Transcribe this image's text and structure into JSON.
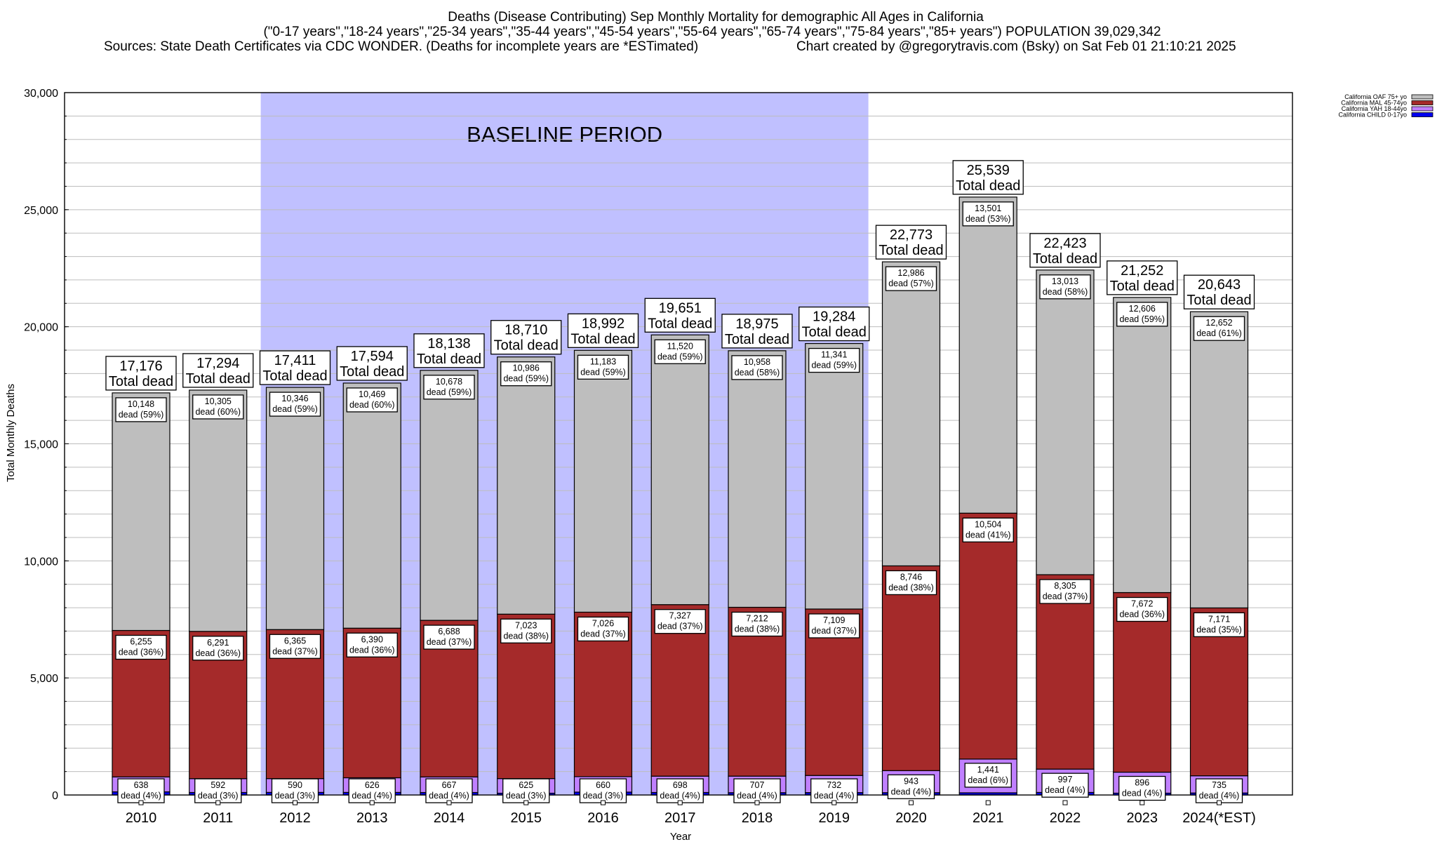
{
  "chart_data": {
    "type": "bar",
    "stacked": true,
    "title": "Deaths (Disease Contributing) Sep Monthly Mortality for demographic All Ages in California",
    "subtitle": "(\"0-17 years\",\"18-24 years\",\"25-34 years\",\"35-44 years\",\"45-54 years\",\"55-64 years\",\"65-74 years\",\"75-84 years\",\"85+ years\") POPULATION 39,029,342",
    "sources": "Sources: State Death Certificates via CDC WONDER. (Deaths for incomplete years are *ESTimated)",
    "credit": "Chart created by @gregorytravis.com (Bsky) on Sat Feb 01 21:10:21 2025",
    "xlabel": "Year",
    "ylabel": "Total Monthly Deaths",
    "ylim": [
      0,
      30000
    ],
    "yticks": [
      0,
      5000,
      10000,
      15000,
      20000,
      25000,
      30000
    ],
    "ytick_labels": [
      "0",
      "5,000",
      "10,000",
      "15,000",
      "20,000",
      "25,000",
      "30,000"
    ],
    "minor_grid_step": 1000,
    "grid": true,
    "legend_position": "top-right",
    "baseline": {
      "label": "BASELINE PERIOD",
      "start": "2012",
      "end": "2019",
      "color": "#c0c0ff"
    },
    "categories": [
      "2010",
      "2011",
      "2012",
      "2013",
      "2014",
      "2015",
      "2016",
      "2017",
      "2018",
      "2019",
      "2020",
      "2021",
      "2022",
      "2023",
      "2024(*EST)"
    ],
    "total_suffix": "Total dead",
    "segment_suffix": "dead",
    "totals": [
      17176,
      17294,
      17411,
      17594,
      18138,
      18710,
      18992,
      19651,
      18975,
      19284,
      22773,
      25539,
      22423,
      21252,
      20643
    ],
    "totals_labels": [
      "17,176",
      "17,294",
      "17,411",
      "17,594",
      "18,138",
      "18,710",
      "18,992",
      "19,651",
      "18,975",
      "19,284",
      "22,773",
      "25,539",
      "22,423",
      "21,252",
      "20,643"
    ],
    "series": [
      {
        "name": "California CHILD 0-17yo",
        "key": "child",
        "color": "#0000ee",
        "values": [
          135,
          106,
          110,
          109,
          105,
          76,
          123,
          106,
          98,
          102,
          98,
          93,
          108,
          78,
          85
        ],
        "labels": null
      },
      {
        "name": "California YAH 18-44yo",
        "key": "yah",
        "color": "#c080ff",
        "values": [
          638,
          592,
          590,
          626,
          667,
          625,
          660,
          698,
          707,
          732,
          943,
          1441,
          997,
          896,
          735
        ],
        "labels": [
          "638",
          "592",
          "590",
          "626",
          "667",
          "625",
          "660",
          "698",
          "707",
          "732",
          "943",
          "1,441",
          "997",
          "896",
          "735"
        ],
        "pcts": [
          "4%",
          "3%",
          "3%",
          "4%",
          "4%",
          "3%",
          "3%",
          "4%",
          "4%",
          "4%",
          "4%",
          "6%",
          "4%",
          "4%",
          "4%"
        ]
      },
      {
        "name": "California MAL 45-74yo",
        "key": "mal",
        "color": "#a52a2a",
        "values": [
          6255,
          6291,
          6365,
          6390,
          6688,
          7023,
          7026,
          7327,
          7212,
          7109,
          8746,
          10504,
          8305,
          7672,
          7171
        ],
        "labels": [
          "6,255",
          "6,291",
          "6,365",
          "6,390",
          "6,688",
          "7,023",
          "7,026",
          "7,327",
          "7,212",
          "7,109",
          "8,746",
          "10,504",
          "8,305",
          "7,672",
          "7,171"
        ],
        "pcts": [
          "36%",
          "36%",
          "37%",
          "36%",
          "37%",
          "38%",
          "37%",
          "37%",
          "38%",
          "37%",
          "38%",
          "41%",
          "37%",
          "36%",
          "35%"
        ]
      },
      {
        "name": "California OAF 75+ yo",
        "key": "oaf",
        "color": "#bebebe",
        "values": [
          10148,
          10305,
          10346,
          10469,
          10678,
          10986,
          11183,
          11520,
          10958,
          11341,
          12986,
          13501,
          13013,
          12606,
          12652
        ],
        "labels": [
          "10,148",
          "10,305",
          "10,346",
          "10,469",
          "10,678",
          "10,986",
          "11,183",
          "11,520",
          "10,958",
          "11,341",
          "12,986",
          "13,501",
          "13,013",
          "12,606",
          "12,652"
        ],
        "pcts": [
          "59%",
          "60%",
          "59%",
          "60%",
          "59%",
          "59%",
          "59%",
          "59%",
          "58%",
          "59%",
          "57%",
          "53%",
          "58%",
          "59%",
          "61%"
        ]
      }
    ],
    "legend_order": [
      "oaf",
      "mal",
      "yah",
      "child"
    ]
  }
}
